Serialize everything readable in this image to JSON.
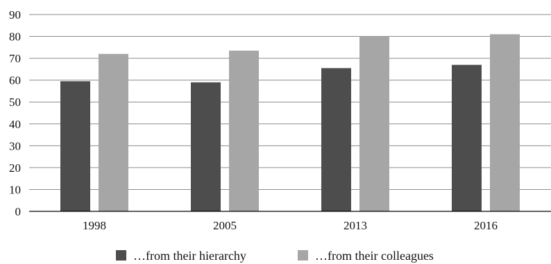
{
  "chart_data": {
    "type": "bar",
    "categories": [
      "1998",
      "2005",
      "2013",
      "2016"
    ],
    "series": [
      {
        "name": "…from their hierarchy",
        "values": [
          59.5,
          59,
          65.5,
          67
        ],
        "color": "#4d4d4d"
      },
      {
        "name": "…from their colleagues",
        "values": [
          72,
          73.5,
          80,
          81
        ],
        "color": "#a6a6a6"
      }
    ],
    "ylim": [
      0,
      90
    ],
    "yticks": [
      "0",
      "10",
      "20",
      "30",
      "40",
      "50",
      "60",
      "70",
      "80",
      "90"
    ],
    "grid": true,
    "legend": "bottom",
    "title": "",
    "xlabel": "",
    "ylabel": ""
  }
}
